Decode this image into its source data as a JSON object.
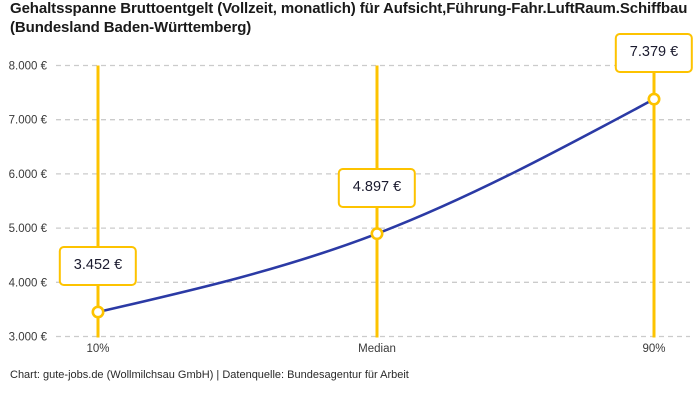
{
  "title": "Gehaltsspanne Bruttoentgelt (Vollzeit, monatlich) für Aufsicht,Führung-Fahr.LuftRaum.Schiffbau (Bundesland Baden-Württemberg)",
  "footer": "Chart: gute-jobs.de (Wollmilchsau GmbH) | Datenquelle: Bundesagentur für Arbeit",
  "colors": {
    "accent_yellow": "#fdc300",
    "line_blue": "#2b3aa5",
    "grid_gray": "#cbcbcb",
    "tick_text": "#3a3a3a",
    "label_text": "#1a1a2e",
    "background": "#ffffff"
  },
  "chart_data": {
    "type": "line",
    "title": "Gehaltsspanne Bruttoentgelt (Vollzeit, monatlich) für Aufsicht,Führung-Fahr.LuftRaum.Schiffbau (Bundesland Baden-Württemberg)",
    "categories": [
      "10%",
      "Median",
      "90%"
    ],
    "values": [
      3452,
      4897,
      7379
    ],
    "point_labels": [
      "3.452 €",
      "4.897 €",
      "7.379 €"
    ],
    "y_ticks": [
      3000,
      4000,
      5000,
      6000,
      7000,
      8000
    ],
    "y_tick_labels": [
      "3.000 €",
      "4.000 €",
      "5.000 €",
      "6.000 €",
      "7.000 €",
      "8.000 €"
    ],
    "ylim": [
      3000,
      8000
    ],
    "xlabel": "",
    "ylabel": "",
    "grid": "horizontal-dashed",
    "legend": "none",
    "markers": "open-circle",
    "annotation_style": "value-box-above-point"
  }
}
